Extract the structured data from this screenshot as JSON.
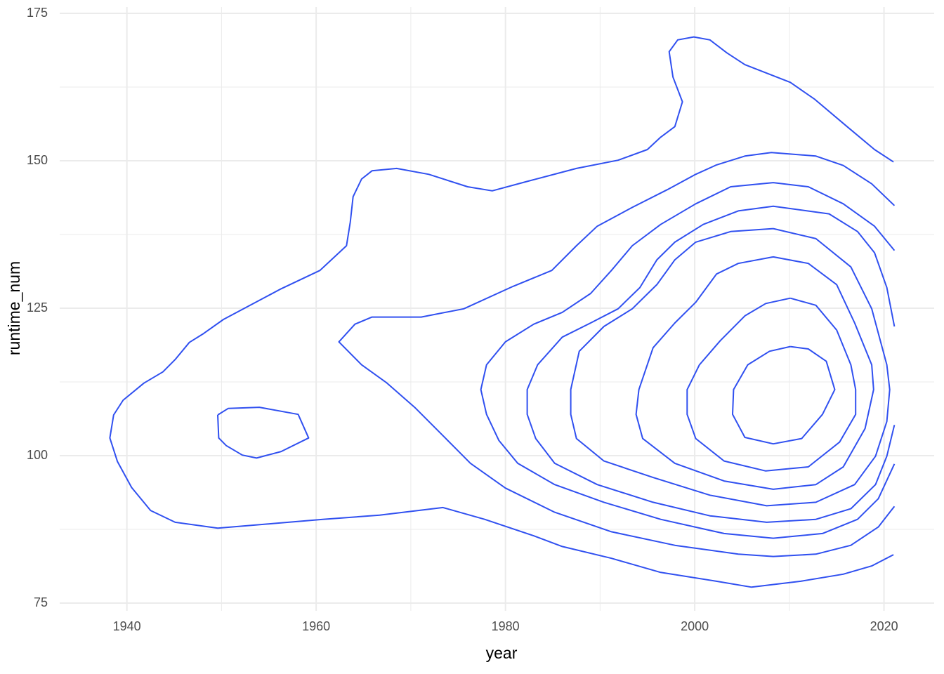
{
  "chart_data": {
    "type": "contour",
    "x_label": "year",
    "y_label": "runtime_num",
    "color": "#3050f0",
    "grid": true,
    "xlim": [
      1932.9,
      2025.3
    ],
    "ylim": [
      75,
      175
    ],
    "xticks": [
      1940,
      1960,
      1980,
      2000,
      2020
    ],
    "x_minor_ticks": [
      1950,
      1970,
      1990,
      2010
    ],
    "yticks": [
      75,
      100,
      125,
      150,
      175
    ],
    "y_minor_ticks": [
      87.5,
      112.5,
      137.5,
      162.5
    ],
    "series": [
      {
        "x": [
          2021.0,
          2019.0,
          2016.1,
          2012.7,
          2010.1,
          2005.3,
          2003.4,
          2001.6,
          1999.9,
          1998.2,
          1997.3,
          1997.7,
          1998.7,
          1997.9,
          1996.4,
          1995.0,
          1991.9,
          1987.5,
          1982.3,
          1978.6,
          1976.0,
          1971.9,
          1968.5,
          1965.9,
          1964.8,
          1963.9,
          1963.6,
          1963.2,
          1960.4,
          1956.3,
          1950.2,
          1948.1,
          1946.6,
          1945.1,
          1943.8,
          1941.8,
          1939.6,
          1938.6,
          1938.2,
          1939.0,
          1940.5,
          1942.5,
          1945.1,
          1949.6,
          1955.5,
          1960.7,
          1966.7,
          1973.4,
          1977.8,
          1983.0,
          1986.0,
          1991.2,
          1996.4,
          2002.3,
          2006.0,
          2011.2,
          2015.7,
          2018.7,
          2021.0
        ],
        "values": [
          149.8,
          151.9,
          155.8,
          160.4,
          163.3,
          166.3,
          168.3,
          170.5,
          171.0,
          170.5,
          168.5,
          164.2,
          160.0,
          155.8,
          154.0,
          151.9,
          150.1,
          148.7,
          146.5,
          144.9,
          145.6,
          147.7,
          148.7,
          148.3,
          146.9,
          143.9,
          139.6,
          135.6,
          131.4,
          128.3,
          123.1,
          120.7,
          119.2,
          116.3,
          114.2,
          112.3,
          109.4,
          106.9,
          103.0,
          99.0,
          94.6,
          90.7,
          88.7,
          87.7,
          88.5,
          89.2,
          89.9,
          91.2,
          89.2,
          86.4,
          84.6,
          82.6,
          80.2,
          78.7,
          77.7,
          78.7,
          79.9,
          81.3,
          83.2
        ]
      },
      {
        "x": [
          1949.6,
          1950.7,
          1954.0,
          1958.1,
          1959.2,
          1956.3,
          1953.7,
          1952.2,
          1950.5,
          1949.7,
          1949.6
        ],
        "values": [
          106.9,
          108.0,
          108.2,
          107.0,
          103.0,
          100.7,
          99.6,
          100.1,
          101.7,
          103.0,
          106.9
        ]
      },
      {
        "x": [
          2021.1,
          2018.7,
          2015.7,
          2012.8,
          2008.1,
          2005.3,
          2002.3,
          2000.1,
          1997.1,
          1993.4,
          1989.7,
          1987.5,
          1984.9,
          1980.8,
          1975.6,
          1971.1,
          1965.9,
          1964.1,
          1962.4,
          1964.8,
          1967.4,
          1970.4,
          1973.7,
          1976.3,
          1980.0,
          1985.2,
          1991.2,
          1997.9,
          2004.6,
          2008.3,
          2012.8,
          2016.5,
          2019.4,
          2021.1
        ],
        "values": [
          142.4,
          146.1,
          149.2,
          150.8,
          151.4,
          150.8,
          149.3,
          147.7,
          145.1,
          142.1,
          138.9,
          135.6,
          131.4,
          128.7,
          124.9,
          123.5,
          123.5,
          122.3,
          119.3,
          115.4,
          112.4,
          108.2,
          102.9,
          98.7,
          94.5,
          90.4,
          87.1,
          84.8,
          83.3,
          82.9,
          83.3,
          84.8,
          87.9,
          91.4
        ]
      },
      {
        "x": [
          2021.1,
          2019.0,
          2015.7,
          2012.0,
          2008.3,
          2003.8,
          2000.1,
          1996.4,
          1993.4,
          1991.2,
          1989.0,
          1986.0,
          1983.0,
          1980.0,
          1978.0,
          1977.4,
          1978.0,
          1979.3,
          1981.3,
          1985.2,
          1990.4,
          1996.4,
          2003.1,
          2008.3,
          2013.5,
          2017.2,
          2019.4,
          2021.1
        ],
        "values": [
          134.8,
          138.9,
          142.7,
          145.6,
          146.3,
          145.6,
          142.7,
          139.2,
          135.6,
          131.4,
          127.5,
          124.3,
          122.3,
          119.3,
          115.4,
          111.2,
          107.0,
          102.6,
          98.7,
          95.1,
          92.1,
          89.2,
          86.8,
          86.0,
          86.8,
          89.2,
          92.7,
          98.6
        ]
      },
      {
        "x": [
          2021.1,
          2020.3,
          2019.0,
          2017.2,
          2014.2,
          2008.3,
          2004.6,
          2000.9,
          1997.9,
          1996.0,
          1994.2,
          1991.9,
          1989.0,
          1986.0,
          1983.4,
          1982.3,
          1982.3,
          1983.2,
          1985.2,
          1989.7,
          1995.6,
          2001.6,
          2007.6,
          2012.8,
          2016.5,
          2019.1,
          2020.3,
          2021.1
        ],
        "values": [
          121.9,
          128.5,
          134.4,
          138.0,
          141.0,
          142.3,
          141.5,
          139.2,
          136.2,
          133.2,
          128.5,
          124.9,
          122.5,
          120.1,
          115.4,
          111.2,
          107.0,
          102.9,
          98.7,
          95.1,
          92.1,
          89.8,
          88.7,
          89.2,
          91.0,
          95.1,
          99.9,
          105.2
        ]
      },
      {
        "x": [
          2008.3,
          2003.8,
          2000.1,
          1997.9,
          1996.0,
          1993.4,
          1990.4,
          1987.8,
          1986.9,
          1986.9,
          1987.5,
          1990.4,
          1995.6,
          2001.6,
          2007.6,
          2012.8,
          2016.9,
          2019.1,
          2020.3,
          2020.6,
          2020.3,
          2018.7,
          2016.5,
          2012.8,
          2008.3
        ],
        "values": [
          138.5,
          138.0,
          136.2,
          133.2,
          129.0,
          124.9,
          121.9,
          117.7,
          111.2,
          107.0,
          102.9,
          99.1,
          96.3,
          93.3,
          91.5,
          92.1,
          95.1,
          99.9,
          105.8,
          111.2,
          115.4,
          124.9,
          132.0,
          136.8,
          138.5
        ]
      },
      {
        "x": [
          2008.3,
          2004.6,
          2002.3,
          2000.1,
          1997.9,
          1995.6,
          1994.1,
          1993.8,
          1994.5,
          1997.9,
          2003.1,
          2008.3,
          2012.8,
          2015.7,
          2018.0,
          2018.9,
          2018.7,
          2016.9,
          2015.0,
          2012.0,
          2008.3
        ],
        "values": [
          133.7,
          132.6,
          130.8,
          126.0,
          122.5,
          118.3,
          111.2,
          107.0,
          102.9,
          98.7,
          95.7,
          94.3,
          95.1,
          98.1,
          104.6,
          111.2,
          115.4,
          122.5,
          129.0,
          132.6,
          133.7
        ]
      },
      {
        "x": [
          2010.1,
          2007.5,
          2005.3,
          2002.7,
          2000.5,
          1999.2,
          1999.2,
          2000.1,
          2003.1,
          2007.5,
          2012.0,
          2015.3,
          2017.0,
          2017.0,
          2016.5,
          2015.0,
          2012.8,
          2010.1
        ],
        "values": [
          126.7,
          125.8,
          123.7,
          119.5,
          115.4,
          111.2,
          107.0,
          102.9,
          99.1,
          97.4,
          98.1,
          102.3,
          107.0,
          111.2,
          115.4,
          121.3,
          125.5,
          126.7
        ]
      },
      {
        "x": [
          2010.1,
          2007.9,
          2005.6,
          2004.1,
          2004.0,
          2005.3,
          2008.3,
          2011.3,
          2013.5,
          2014.8,
          2013.9,
          2012.0,
          2010.1
        ],
        "values": [
          118.5,
          117.7,
          115.4,
          111.2,
          107.0,
          103.1,
          102.0,
          102.9,
          107.0,
          111.2,
          116.0,
          118.1,
          118.5
        ]
      }
    ]
  }
}
